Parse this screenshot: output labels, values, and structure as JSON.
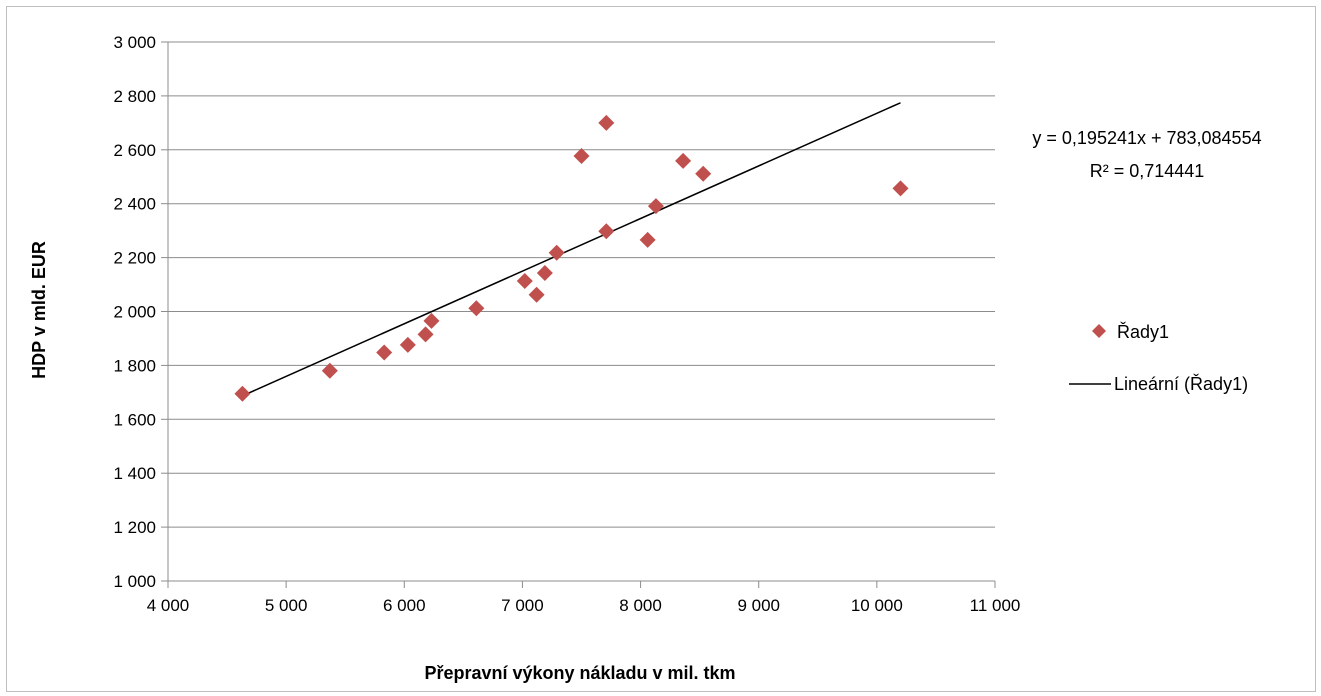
{
  "chart_data": {
    "type": "scatter",
    "title": "",
    "xlabel": "Přepravní výkony nákladu v mil. tkm",
    "ylabel": "HDP v mld. EUR",
    "xlim": [
      4000,
      11000
    ],
    "ylim": [
      1000,
      3000
    ],
    "x_ticks": [
      4000,
      5000,
      6000,
      7000,
      8000,
      9000,
      10000,
      11000
    ],
    "y_ticks": [
      1000,
      1200,
      1400,
      1600,
      1800,
      2000,
      2200,
      2400,
      2600,
      2800,
      3000
    ],
    "x_tick_labels": [
      "4 000",
      "5 000",
      "6 000",
      "7 000",
      "8 000",
      "9 000",
      "10 000",
      "11 000"
    ],
    "y_tick_labels": [
      "1 000",
      "1 200",
      "1 400",
      "1 600",
      "1 800",
      "2 000",
      "2 200",
      "2 400",
      "2 600",
      "2 800",
      "3 000"
    ],
    "grid": "horizontal",
    "legend_position": "right",
    "series": [
      {
        "name": "Řady1",
        "color": "#c0504d",
        "marker": "diamond",
        "points": [
          {
            "x": 4630,
            "y": 1695
          },
          {
            "x": 5370,
            "y": 1780
          },
          {
            "x": 5830,
            "y": 1848
          },
          {
            "x": 6030,
            "y": 1876
          },
          {
            "x": 6180,
            "y": 1915
          },
          {
            "x": 6230,
            "y": 1965
          },
          {
            "x": 6610,
            "y": 2012
          },
          {
            "x": 7020,
            "y": 2113
          },
          {
            "x": 7120,
            "y": 2062
          },
          {
            "x": 7190,
            "y": 2143
          },
          {
            "x": 7290,
            "y": 2218
          },
          {
            "x": 7500,
            "y": 2577
          },
          {
            "x": 7710,
            "y": 2700
          },
          {
            "x": 7710,
            "y": 2298
          },
          {
            "x": 8060,
            "y": 2266
          },
          {
            "x": 8130,
            "y": 2391
          },
          {
            "x": 8360,
            "y": 2559
          },
          {
            "x": 8530,
            "y": 2511
          },
          {
            "x": 10200,
            "y": 2457
          }
        ]
      }
    ],
    "trendline": {
      "name": "Lineární (Řady1)",
      "type": "linear",
      "slope": 0.195241,
      "intercept": 783.084554,
      "x_range": [
        4630,
        10200
      ],
      "color": "#000000",
      "equation_text": "y = 0,195241x + 783,084554",
      "r2_text": "R² = 0,714441"
    }
  }
}
